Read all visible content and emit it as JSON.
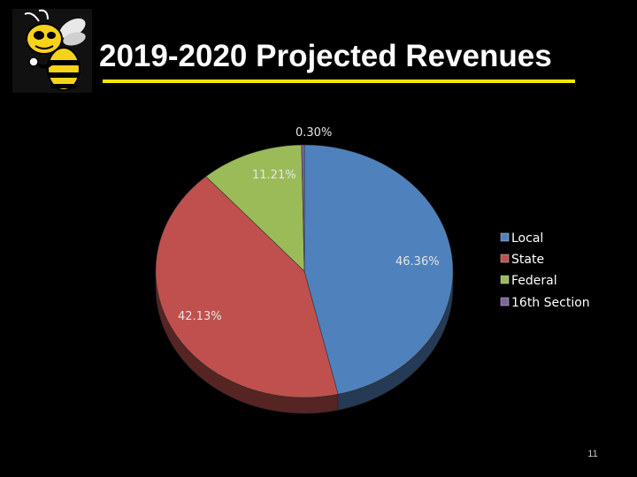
{
  "slide": {
    "title": "2019-2020 Projected Revenues",
    "page_number": "11",
    "accent_color": "#F7E700"
  },
  "logo": {
    "icon": "yellow-jacket-mascot-icon"
  },
  "chart_data": {
    "type": "pie",
    "title": "",
    "legend_position": "right",
    "series": [
      {
        "name": "Local",
        "value": 46.36,
        "label": "46.36%",
        "color": "#4F81BD"
      },
      {
        "name": "State",
        "value": 42.13,
        "label": "42.13%",
        "color": "#C0504D"
      },
      {
        "name": "Federal",
        "value": 11.21,
        "label": "11.21%",
        "color": "#9BBB59"
      },
      {
        "name": "16th Section",
        "value": 0.3,
        "label": "0.30%",
        "color": "#8064A2"
      }
    ]
  }
}
